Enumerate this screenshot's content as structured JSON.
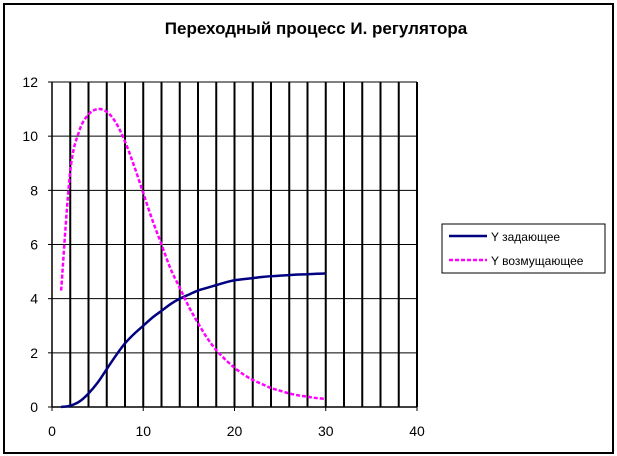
{
  "chart_data": {
    "type": "line",
    "title": "Переходный процесс И. регулятора",
    "xlabel": "",
    "ylabel": "",
    "xlim": [
      0,
      40
    ],
    "ylim": [
      0,
      12
    ],
    "x_ticks": [
      "0",
      "10",
      "20",
      "30",
      "40"
    ],
    "y_ticks": [
      "0",
      "2",
      "4",
      "6",
      "8",
      "10",
      "12"
    ],
    "grid": {
      "vertical_step": 2,
      "horizontal_step": 2
    },
    "legend_position": "right",
    "series": [
      {
        "name": "Y задающее",
        "color": "#000080",
        "style": "solid",
        "x": [
          1,
          2,
          3,
          4,
          5,
          6,
          7,
          8,
          9,
          10,
          11,
          12,
          13,
          14,
          15,
          16,
          17,
          18,
          19,
          20,
          21,
          22,
          23,
          24,
          25,
          26,
          27,
          28,
          29,
          30
        ],
        "y": [
          0.0,
          0.05,
          0.2,
          0.5,
          0.9,
          1.4,
          1.9,
          2.35,
          2.7,
          3.0,
          3.3,
          3.55,
          3.8,
          4.0,
          4.15,
          4.3,
          4.4,
          4.5,
          4.6,
          4.68,
          4.72,
          4.76,
          4.8,
          4.83,
          4.85,
          4.87,
          4.89,
          4.9,
          4.92,
          4.93
        ]
      },
      {
        "name": "Y возмущающее",
        "color": "#ff00ff",
        "style": "dashed",
        "x": [
          1,
          2,
          3,
          4,
          5,
          6,
          7,
          8,
          9,
          10,
          11,
          12,
          13,
          14,
          15,
          16,
          17,
          18,
          19,
          20,
          21,
          22,
          23,
          24,
          25,
          26,
          27,
          28,
          29,
          30
        ],
        "y": [
          4.3,
          8.7,
          10.2,
          10.8,
          11.0,
          10.9,
          10.5,
          9.8,
          8.9,
          7.9,
          6.9,
          6.0,
          5.1,
          4.4,
          3.7,
          3.1,
          2.55,
          2.1,
          1.75,
          1.45,
          1.2,
          1.0,
          0.85,
          0.7,
          0.6,
          0.5,
          0.43,
          0.38,
          0.33,
          0.3
        ]
      }
    ]
  }
}
